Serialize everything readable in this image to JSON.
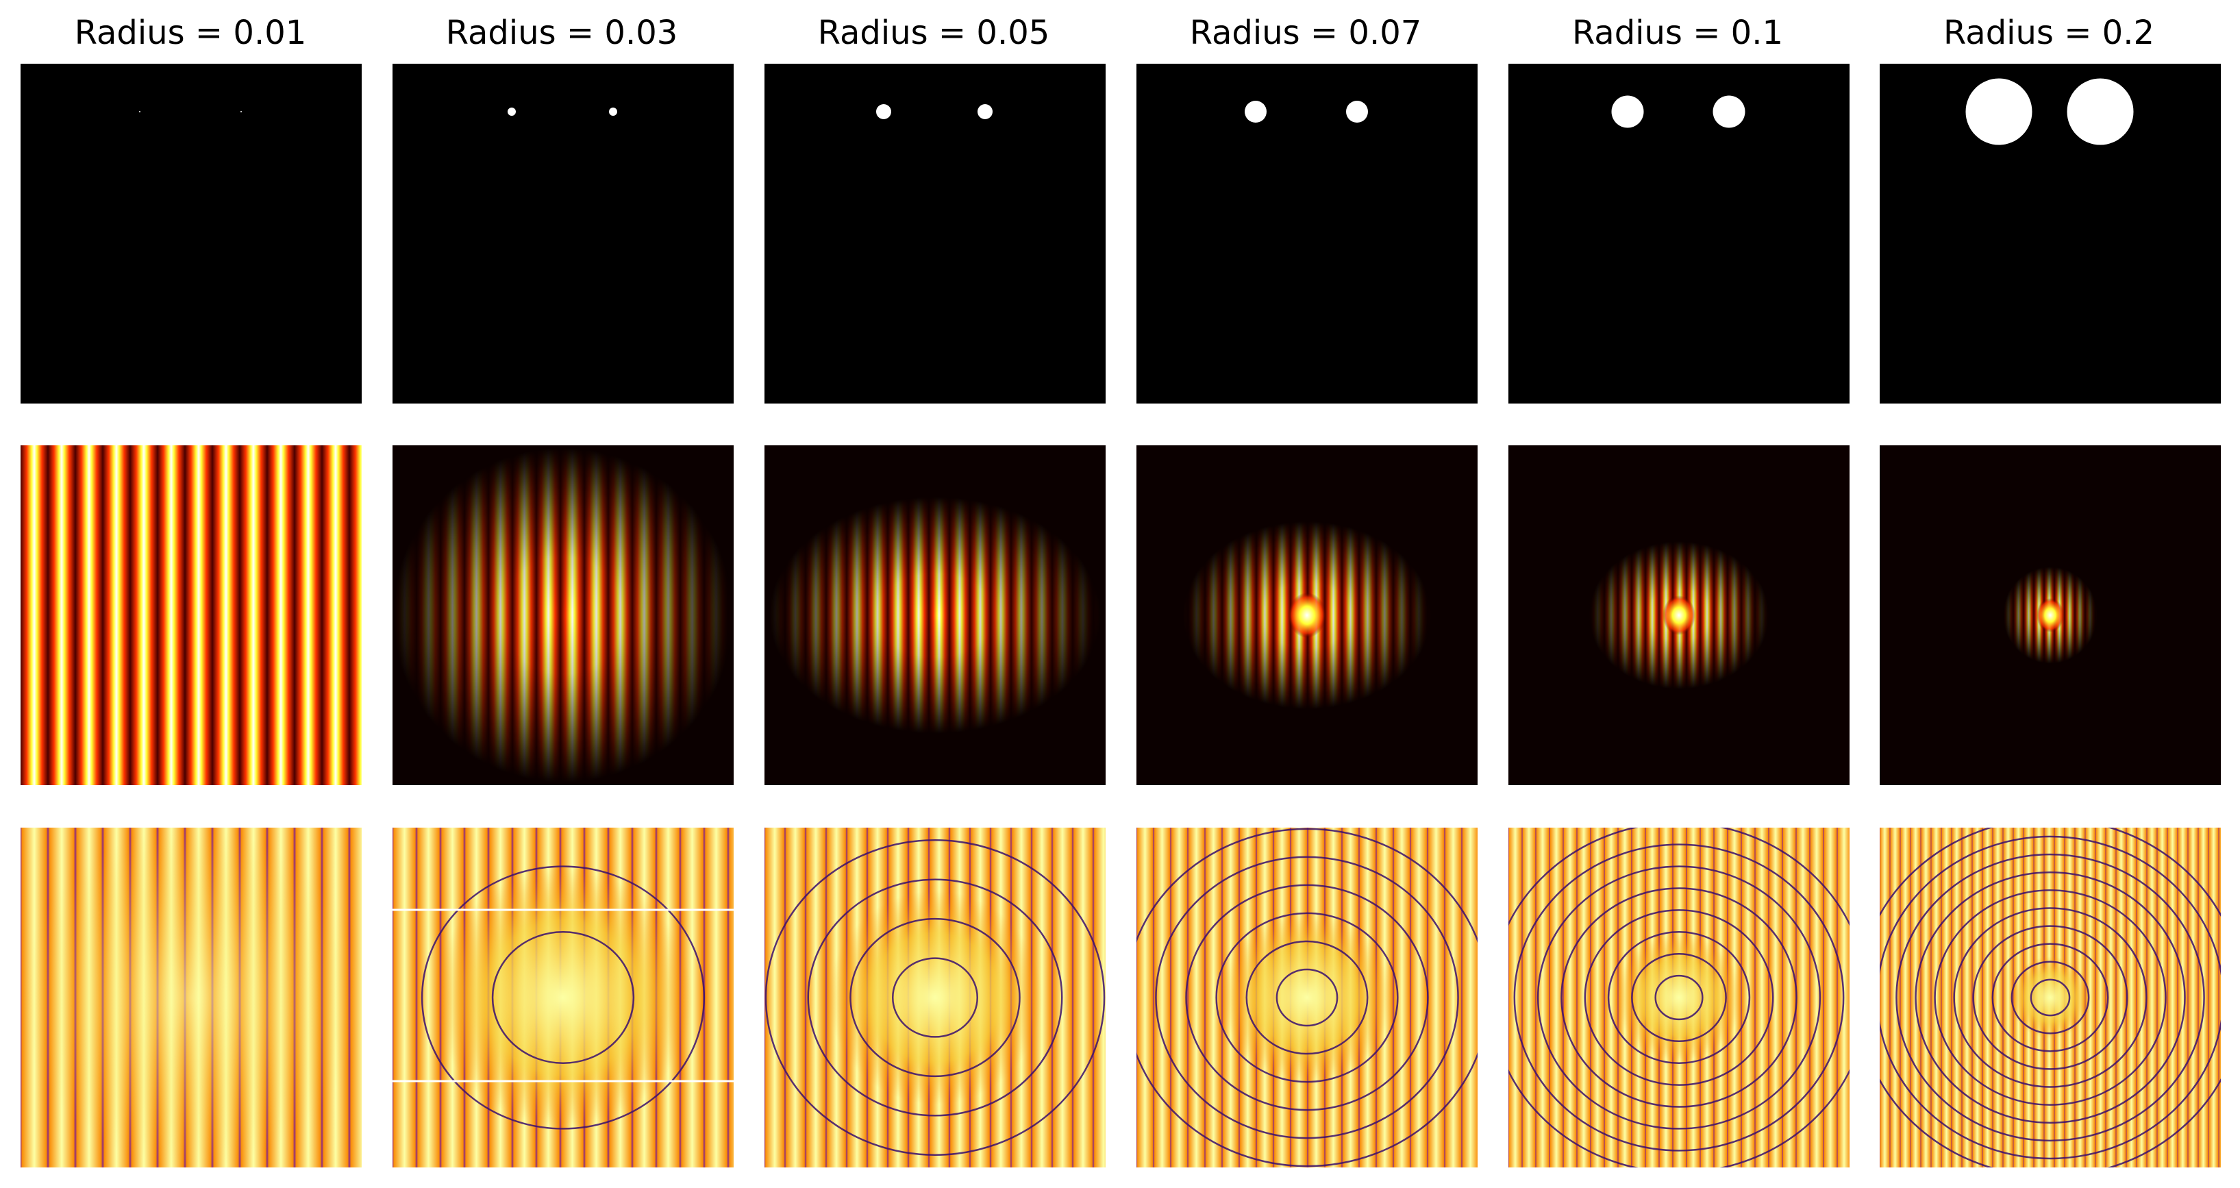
{
  "figure": {
    "columns": [
      {
        "title": "Radius = 0.01",
        "radius": 0.01
      },
      {
        "title": "Radius = 0.03",
        "radius": 0.03
      },
      {
        "title": "Radius = 0.05",
        "radius": 0.05
      },
      {
        "title": "Radius = 0.07",
        "radius": 0.07
      },
      {
        "title": "Radius = 0.1",
        "radius": 0.1
      },
      {
        "title": "Radius = 0.2",
        "radius": 0.2
      }
    ],
    "rows": [
      "aperture-mask",
      "diffraction-intensity",
      "log-diffraction-intensity"
    ],
    "colors": {
      "background": "#ffffff",
      "mask_background": "#000000",
      "mask_aperture": "#ffffff",
      "hot": [
        "#0b0000",
        "#4a0000",
        "#a00000",
        "#ff3300",
        "#ff9900",
        "#ffff33",
        "#ffffff"
      ],
      "inferno": [
        "#3a0f6e",
        "#8c2981",
        "#de4968",
        "#f98e09",
        "#f7d13d",
        "#fcffa4"
      ]
    }
  }
}
